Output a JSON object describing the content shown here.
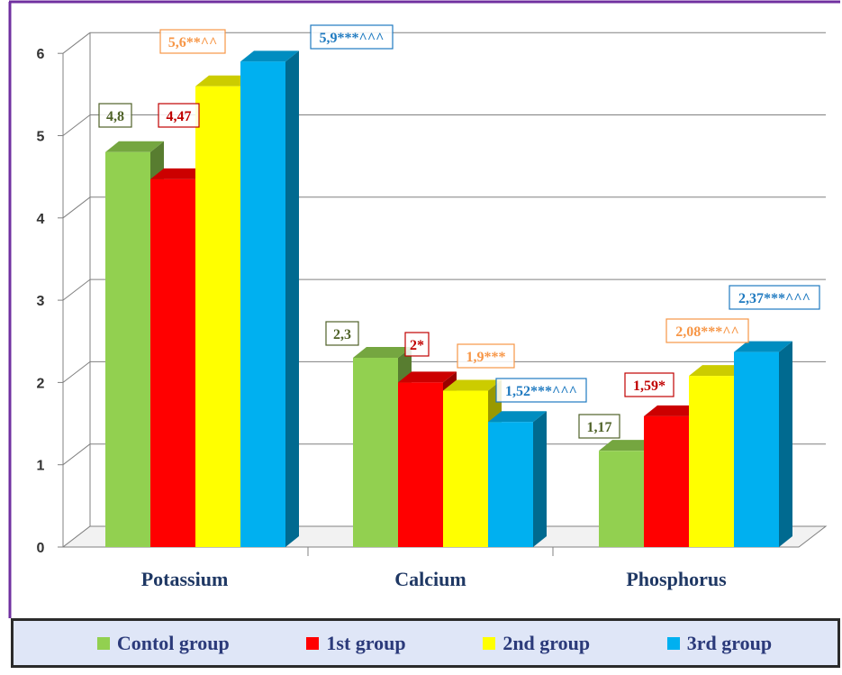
{
  "chart_data": {
    "type": "bar",
    "categories": [
      "Potassium",
      "Calcium",
      "Phosphorus"
    ],
    "series": [
      {
        "name": "Contol group",
        "values": [
          4.8,
          2.3,
          1.17
        ],
        "labels": [
          "4,8",
          "2,3",
          "1,17"
        ],
        "color": "#92d050"
      },
      {
        "name": "1st group",
        "values": [
          4.47,
          2.0,
          1.59
        ],
        "labels": [
          "4,47",
          "2*",
          "1,59*"
        ],
        "color": "#ff0000"
      },
      {
        "name": "2nd group",
        "values": [
          5.6,
          1.9,
          2.08
        ],
        "labels": [
          "5,6**^^",
          "1,9***",
          "2,08***^^"
        ],
        "color": "#ffff00"
      },
      {
        "name": "3rd group",
        "values": [
          5.9,
          1.52,
          2.37
        ],
        "labels": [
          "5,9***^^^",
          "1,52***^^^",
          "2,37***^^^"
        ],
        "color": "#00b0f0"
      }
    ],
    "label_colors": [
      "#4f6228",
      "#c00000",
      "#f79646",
      "#1f7ac0"
    ],
    "yticks": [
      "0",
      "1",
      "2",
      "3",
      "4",
      "5",
      "6"
    ],
    "ylim": [
      0,
      6
    ],
    "grid": true,
    "legend_position": "bottom"
  },
  "colors": {
    "frame": "#7030a0",
    "legend_bg": "#dfe6f7",
    "category_text": "#1f3864"
  }
}
